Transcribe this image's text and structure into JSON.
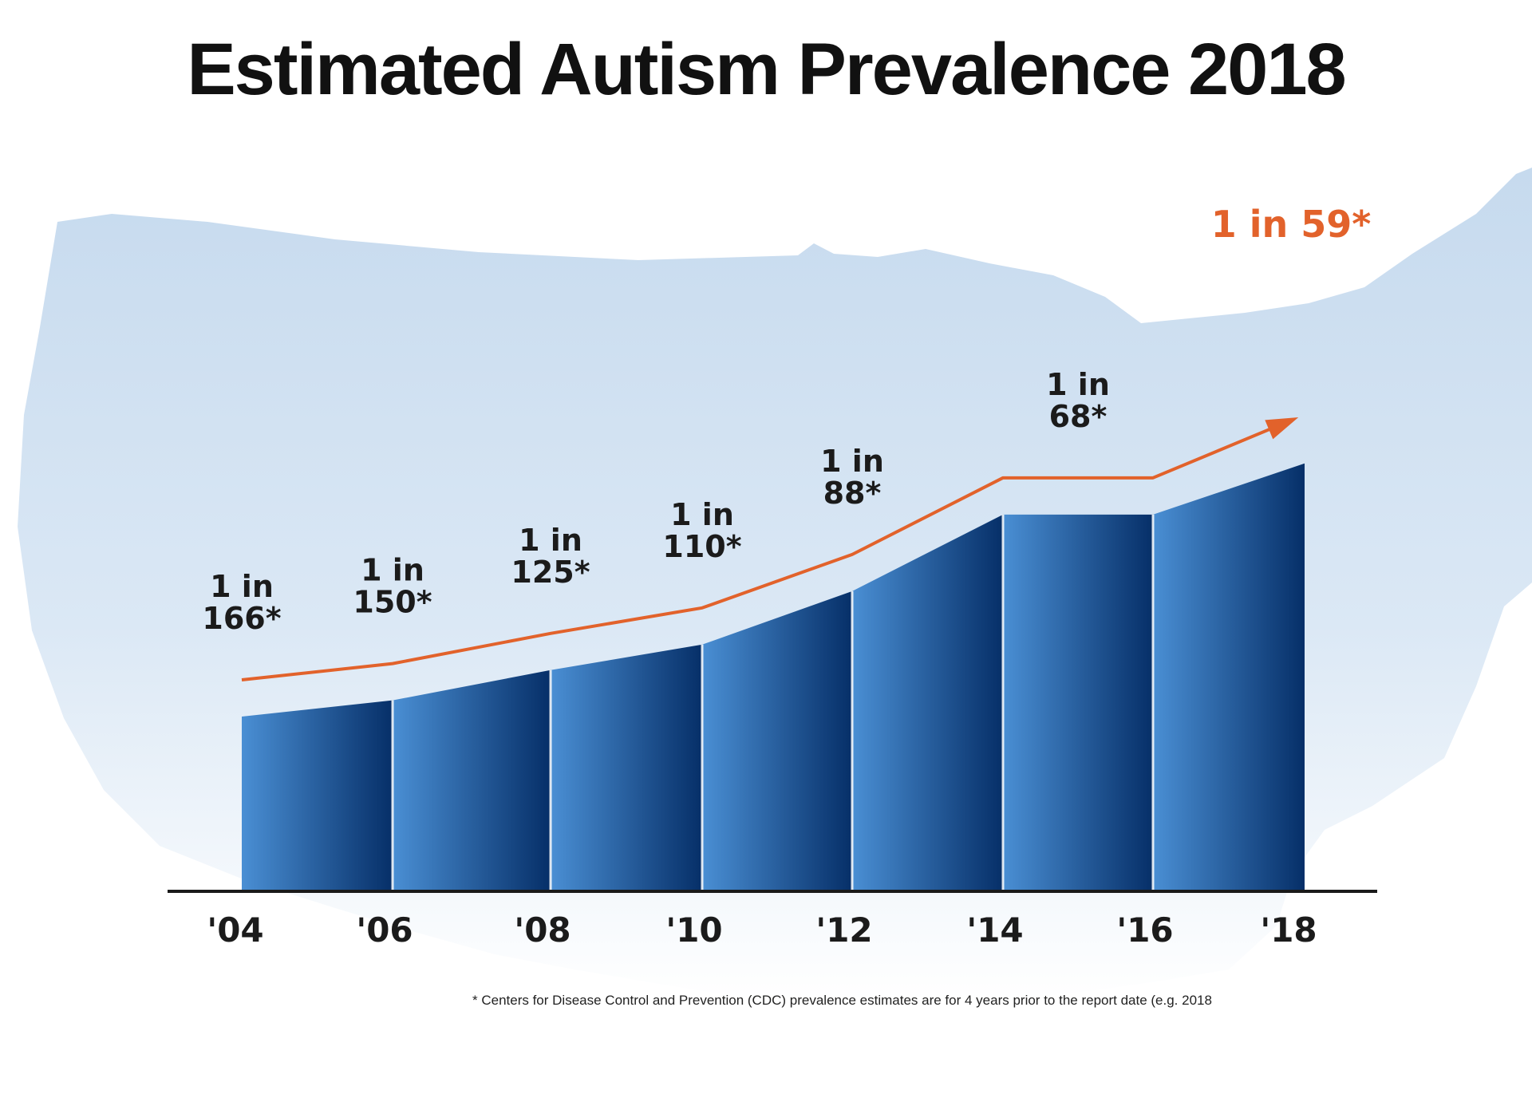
{
  "title": "Estimated Autism Prevalence 2018",
  "footnote": "* Centers for Disease Control and Prevention (CDC) prevalence estimates are for 4 years prior to the report date (e.g. 2018",
  "colors": {
    "bar_light": "#4a8fd4",
    "bar_dark": "#062f68",
    "trend_line": "#e2622b",
    "map_fill": "#c9dcee",
    "axis": "#1a1a1a",
    "text": "#1b1b1b"
  },
  "chart_data": {
    "type": "area",
    "title": "Estimated Autism Prevalence 2018",
    "xlabel": "",
    "ylabel": "",
    "categories": [
      "'04",
      "'06",
      "'08",
      "'10",
      "'12",
      "'14",
      "'16",
      "'18"
    ],
    "series": [
      {
        "values": [
          "1 in 166*",
          "1 in 150*",
          "1 in 125*",
          "1 in 110*",
          "1 in 88*",
          "1 in 68*",
          "1 in 68*",
          "1 in 59*"
        ],
        "rate_per_1000": [
          6.0,
          6.7,
          8.0,
          9.1,
          11.4,
          14.7,
          14.7,
          16.9
        ]
      }
    ],
    "data_labels": [
      {
        "category": "'04",
        "line1": "1 in",
        "line2": "166*"
      },
      {
        "category": "'06",
        "line1": "1 in",
        "line2": "150*"
      },
      {
        "category": "'08",
        "line1": "1 in",
        "line2": "125*"
      },
      {
        "category": "'10",
        "line1": "1 in",
        "line2": "110*"
      },
      {
        "category": "'12",
        "line1": "1 in",
        "line2": "88*"
      },
      {
        "category": "'14",
        "line1": "1 in",
        "line2": "68*"
      }
    ],
    "highlight_label": "1 in 59*",
    "trend_arrow": true,
    "background": "US map silhouette",
    "grid": false,
    "legend": "none"
  }
}
